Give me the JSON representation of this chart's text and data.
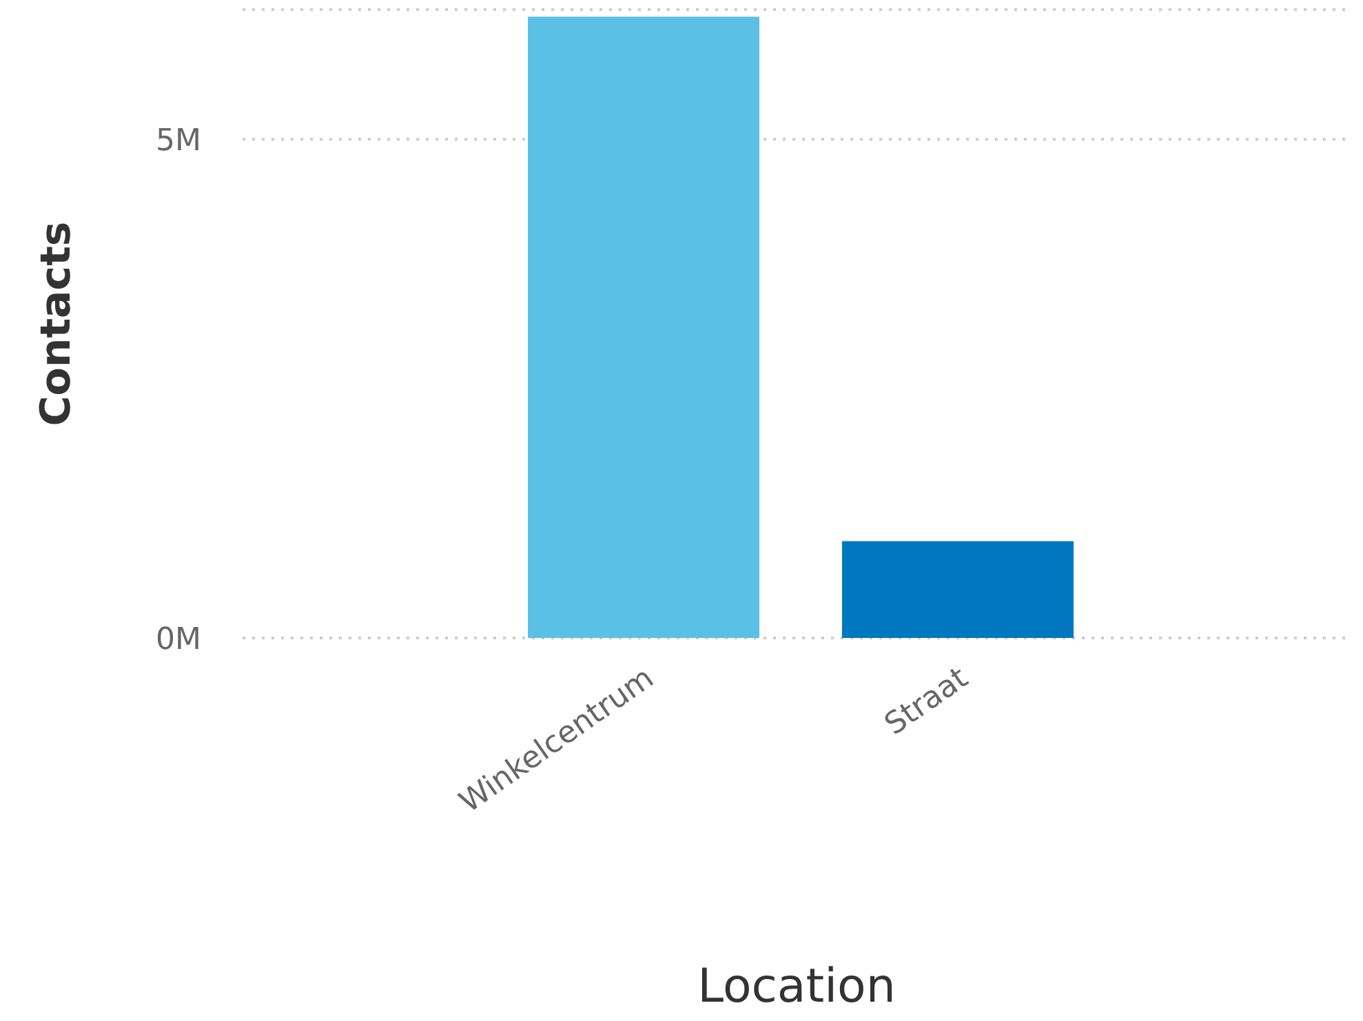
{
  "chart_data": {
    "type": "bar",
    "xlabel": "Location",
    "ylabel": "Contacts",
    "categories": [
      "Winkelcentrum",
      "Straat"
    ],
    "values": [
      6230000,
      970000
    ],
    "colors": [
      "#5bc0e6",
      "#0077c0"
    ],
    "ylim": [
      0,
      6300000
    ],
    "yticks": [
      {
        "value": 0,
        "label": "0M"
      },
      {
        "value": 5000000,
        "label": "5M"
      }
    ],
    "grid": "y"
  }
}
